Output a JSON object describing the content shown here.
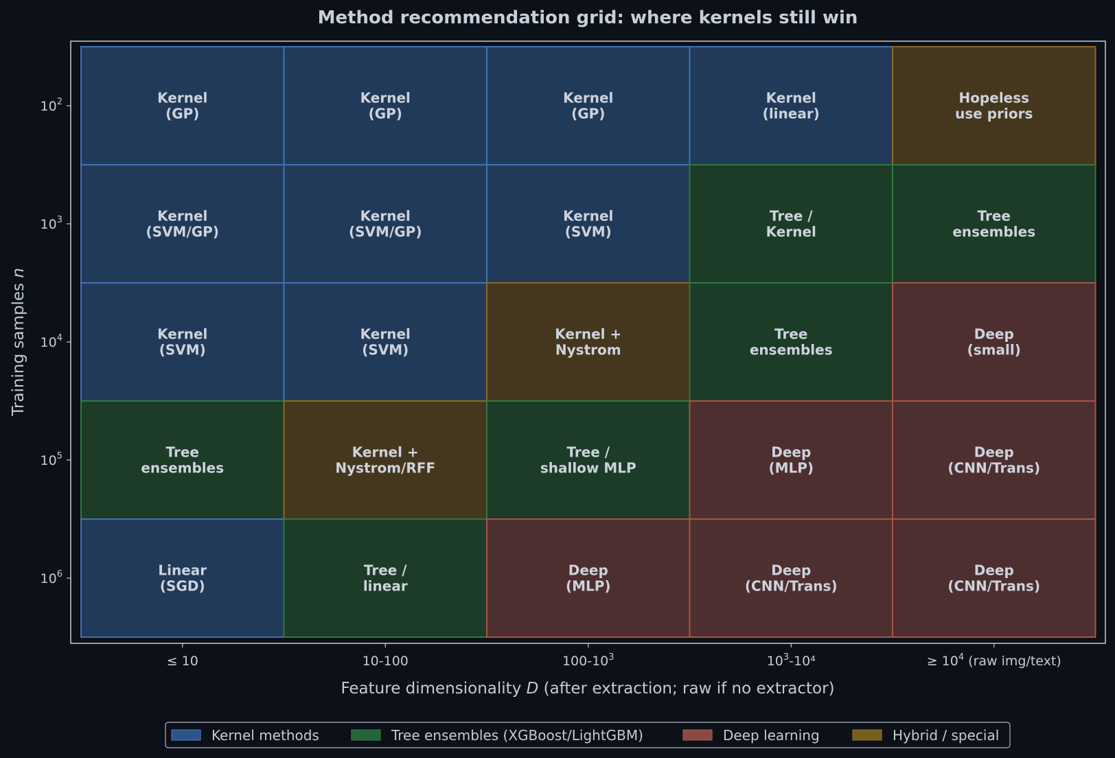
{
  "chart_data": {
    "type": "heatmap",
    "title": "Method recommendation grid: where kernels still win",
    "xlabel_prefix": "Feature dimensionality ",
    "xlabel_symbol": "D",
    "xlabel_suffix": " (after extraction; raw if no extractor)",
    "ylabel_prefix": "Training samples ",
    "ylabel_symbol": "n",
    "x_categories": [
      {
        "base": "≤ 10",
        "sup": "",
        "tail": ""
      },
      {
        "base": "10-100",
        "sup": "",
        "tail": ""
      },
      {
        "base": "100-10",
        "sup": "3",
        "tail": ""
      },
      {
        "base": "10",
        "sup": "3",
        "tail": "-10⁴"
      },
      {
        "base": "≥ 10",
        "sup": "4",
        "tail": " (raw img/text)"
      }
    ],
    "y_ticks": [
      {
        "base": "10",
        "sup": "2"
      },
      {
        "base": "10",
        "sup": "3"
      },
      {
        "base": "10",
        "sup": "4"
      },
      {
        "base": "10",
        "sup": "5"
      },
      {
        "base": "10",
        "sup": "6"
      }
    ],
    "y_scale": "log",
    "categories_colors": {
      "kernel": {
        "fill": "#223a59",
        "edge": "#3f73b4",
        "swatch": "#2e558a"
      },
      "tree": {
        "fill": "#1c3c27",
        "edge": "#2e7a3e",
        "swatch": "#24643a"
      },
      "deep": {
        "fill": "#4e2f2f",
        "edge": "#a95446",
        "swatch": "#8a4a44"
      },
      "hybrid": {
        "fill": "#45371d",
        "edge": "#8a6a23",
        "swatch": "#74601e"
      }
    },
    "cells": [
      [
        {
          "lines": [
            "Kernel",
            "(GP)"
          ],
          "category": "kernel"
        },
        {
          "lines": [
            "Kernel",
            "(GP)"
          ],
          "category": "kernel"
        },
        {
          "lines": [
            "Kernel",
            "(GP)"
          ],
          "category": "kernel"
        },
        {
          "lines": [
            "Kernel",
            "(linear)"
          ],
          "category": "kernel"
        },
        {
          "lines": [
            "Hopeless",
            "use priors"
          ],
          "category": "hybrid"
        }
      ],
      [
        {
          "lines": [
            "Kernel",
            "(SVM/GP)"
          ],
          "category": "kernel"
        },
        {
          "lines": [
            "Kernel",
            "(SVM/GP)"
          ],
          "category": "kernel"
        },
        {
          "lines": [
            "Kernel",
            "(SVM)"
          ],
          "category": "kernel"
        },
        {
          "lines": [
            "Tree /",
            "Kernel"
          ],
          "category": "tree"
        },
        {
          "lines": [
            "Tree",
            "ensembles"
          ],
          "category": "tree"
        }
      ],
      [
        {
          "lines": [
            "Kernel",
            "(SVM)"
          ],
          "category": "kernel"
        },
        {
          "lines": [
            "Kernel",
            "(SVM)"
          ],
          "category": "kernel"
        },
        {
          "lines": [
            "Kernel +",
            "Nystrom"
          ],
          "category": "hybrid"
        },
        {
          "lines": [
            "Tree",
            "ensembles"
          ],
          "category": "tree"
        },
        {
          "lines": [
            "Deep",
            "(small)"
          ],
          "category": "deep"
        }
      ],
      [
        {
          "lines": [
            "Tree",
            "ensembles"
          ],
          "category": "tree"
        },
        {
          "lines": [
            "Kernel +",
            "Nystrom/RFF"
          ],
          "category": "hybrid"
        },
        {
          "lines": [
            "Tree /",
            "shallow MLP"
          ],
          "category": "tree"
        },
        {
          "lines": [
            "Deep",
            "(MLP)"
          ],
          "category": "deep"
        },
        {
          "lines": [
            "Deep",
            "(CNN/Trans)"
          ],
          "category": "deep"
        }
      ],
      [
        {
          "lines": [
            "Linear",
            "(SGD)"
          ],
          "category": "kernel"
        },
        {
          "lines": [
            "Tree /",
            "linear"
          ],
          "category": "tree"
        },
        {
          "lines": [
            "Deep",
            "(MLP)"
          ],
          "category": "deep"
        },
        {
          "lines": [
            "Deep",
            "(CNN/Trans)"
          ],
          "category": "deep"
        },
        {
          "lines": [
            "Deep",
            "(CNN/Trans)"
          ],
          "category": "deep"
        }
      ]
    ],
    "legend": [
      {
        "label": "Kernel methods",
        "category": "kernel"
      },
      {
        "label": "Tree ensembles (XGBoost/LightGBM)",
        "category": "tree"
      },
      {
        "label": "Deep learning",
        "category": "deep"
      },
      {
        "label": "Hybrid / special",
        "category": "hybrid"
      }
    ],
    "legend_placement": "bottom-center",
    "grid": false
  }
}
